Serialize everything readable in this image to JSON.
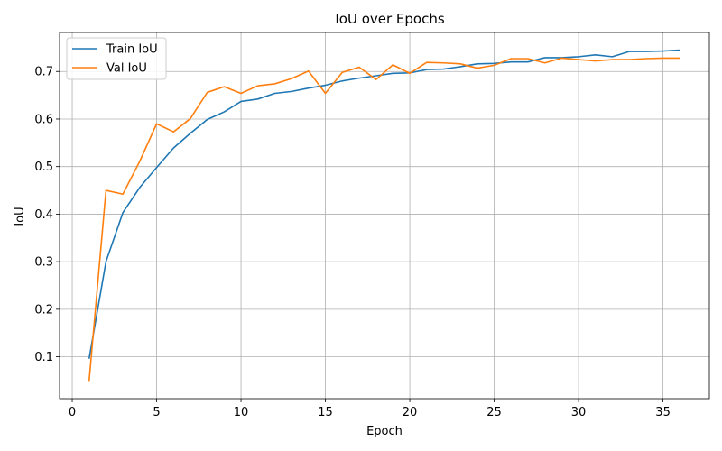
{
  "chart_data": {
    "type": "line",
    "title": "IoU over Epochs",
    "xlabel": "Epoch",
    "ylabel": "IoU",
    "xlim": [
      -0.75,
      37.75
    ],
    "ylim": [
      0.012,
      0.782
    ],
    "xticks": [
      0,
      5,
      10,
      15,
      20,
      25,
      30,
      35
    ],
    "yticks": [
      0.1,
      0.2,
      0.3,
      0.4,
      0.5,
      0.6,
      0.7
    ],
    "ytick_labels": [
      "0.1",
      "0.2",
      "0.3",
      "0.4",
      "0.5",
      "0.6",
      "0.7"
    ],
    "grid": true,
    "legend_position": "upper-left",
    "x": [
      1,
      2,
      3,
      4,
      5,
      6,
      7,
      8,
      9,
      10,
      11,
      12,
      13,
      14,
      15,
      16,
      17,
      18,
      19,
      20,
      21,
      22,
      23,
      24,
      25,
      26,
      27,
      28,
      29,
      30,
      31,
      32,
      33,
      34,
      35,
      36
    ],
    "series": [
      {
        "name": "Train IoU",
        "color": "#1f77b4",
        "values": [
          0.096,
          0.3,
          0.403,
          0.456,
          0.498,
          0.539,
          0.57,
          0.599,
          0.615,
          0.637,
          0.642,
          0.654,
          0.658,
          0.665,
          0.671,
          0.68,
          0.686,
          0.691,
          0.696,
          0.697,
          0.704,
          0.705,
          0.71,
          0.716,
          0.717,
          0.72,
          0.72,
          0.729,
          0.729,
          0.731,
          0.735,
          0.731,
          0.742,
          0.742,
          0.743,
          0.745
        ]
      },
      {
        "name": "Val IoU",
        "color": "#ff7f0e",
        "values": [
          0.049,
          0.45,
          0.442,
          0.511,
          0.59,
          0.573,
          0.601,
          0.656,
          0.668,
          0.654,
          0.67,
          0.674,
          0.685,
          0.701,
          0.654,
          0.698,
          0.709,
          0.683,
          0.714,
          0.696,
          0.719,
          0.718,
          0.716,
          0.707,
          0.713,
          0.727,
          0.727,
          0.718,
          0.728,
          0.725,
          0.722,
          0.725,
          0.725,
          0.727,
          0.728,
          0.728
        ]
      }
    ]
  }
}
